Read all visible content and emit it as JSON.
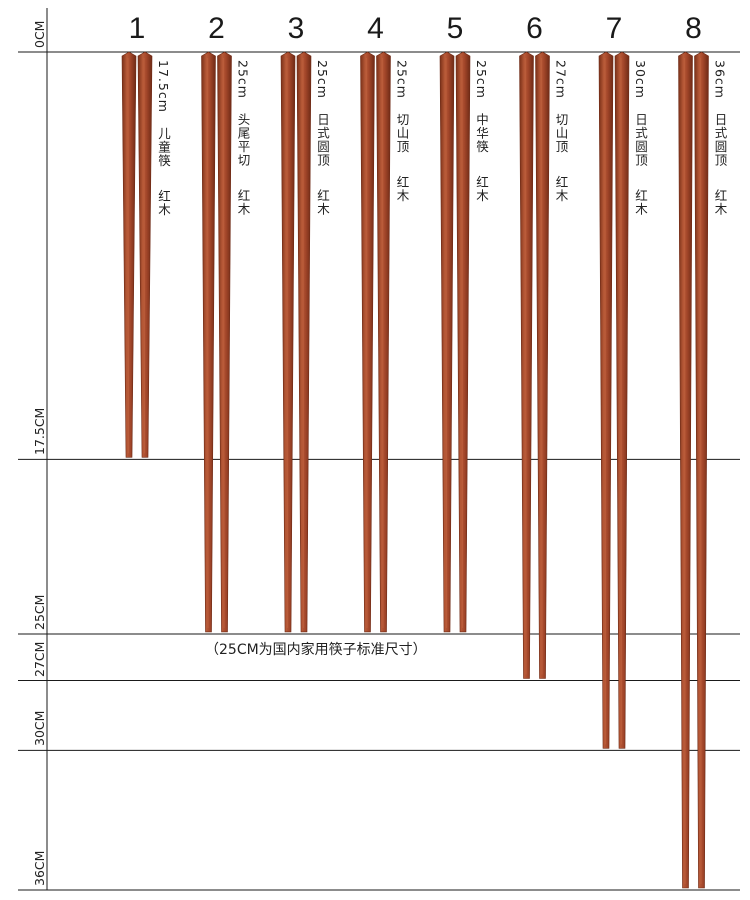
{
  "scale": {
    "marks": [
      {
        "cm": 0,
        "label": "0CM"
      },
      {
        "cm": 17.5,
        "label": "17.5CM"
      },
      {
        "cm": 25,
        "label": "25CM"
      },
      {
        "cm": 27,
        "label": "27CM"
      },
      {
        "cm": 30,
        "label": "30CM"
      },
      {
        "cm": 36,
        "label": "36CM"
      }
    ]
  },
  "note": "（25CM为国内家用筷子标准尺寸）",
  "chopsticks": [
    {
      "number": "1",
      "length_cm": 17.5,
      "size": "17.5cm",
      "style": "儿童筷",
      "material": "红木"
    },
    {
      "number": "2",
      "length_cm": 25,
      "size": "25cm",
      "style": "头尾平切",
      "material": "红木"
    },
    {
      "number": "3",
      "length_cm": 25,
      "size": "25cm",
      "style": "日式圆顶",
      "material": "红木"
    },
    {
      "number": "4",
      "length_cm": 25,
      "size": "25cm",
      "style": "切山顶",
      "material": "红木"
    },
    {
      "number": "5",
      "length_cm": 25,
      "size": "25cm",
      "style": "中华筷",
      "material": "红木"
    },
    {
      "number": "6",
      "length_cm": 27,
      "size": "27cm",
      "style": "切山顶",
      "material": "红木"
    },
    {
      "number": "7",
      "length_cm": 30,
      "size": "30cm",
      "style": "日式圆顶",
      "material": "红木"
    },
    {
      "number": "8",
      "length_cm": 36,
      "size": "36cm",
      "style": "日式圆顶",
      "material": "红木"
    }
  ],
  "colors": {
    "wood_main": "#a4472a",
    "wood_light": "#c0623f",
    "wood_dark": "#6e2a16",
    "line": "#1a1a1a"
  }
}
